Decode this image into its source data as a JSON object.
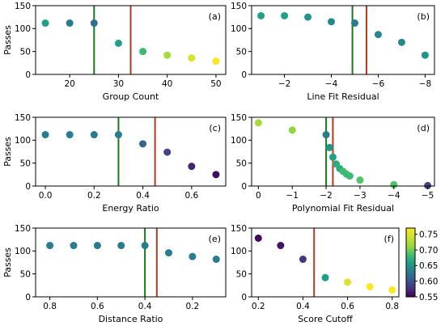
{
  "colorbar": {
    "min": 0.55,
    "max": 0.77,
    "ticks": [
      0.55,
      0.6,
      0.65,
      0.7,
      0.75
    ],
    "tick_labels": [
      "0.55",
      "0.60",
      "0.65",
      "0.70",
      "0.75"
    ],
    "colormap": "viridis"
  },
  "chart_data": [
    {
      "id": "a",
      "panel_label": "(a)",
      "type": "scatter",
      "xlabel": "Group Count",
      "ylabel": "Passes",
      "xlim": [
        13,
        52
      ],
      "ylim": [
        0,
        150
      ],
      "x_inverted": false,
      "xticks": [
        20,
        30,
        40,
        50
      ],
      "xtick_labels": [
        "20",
        "30",
        "40",
        "50"
      ],
      "yticks": [
        0,
        50,
        100,
        150
      ],
      "ytick_labels": [
        "0",
        "50",
        "100",
        "150"
      ],
      "points": [
        {
          "x": 15,
          "y": 112,
          "c": 0.66
        },
        {
          "x": 20,
          "y": 112,
          "c": 0.63
        },
        {
          "x": 25,
          "y": 112,
          "c": 0.62
        },
        {
          "x": 30,
          "y": 68,
          "c": 0.66
        },
        {
          "x": 35,
          "y": 50,
          "c": 0.68
        },
        {
          "x": 40,
          "y": 42,
          "c": 0.72
        },
        {
          "x": 45,
          "y": 36,
          "c": 0.75
        },
        {
          "x": 50,
          "y": 29,
          "c": 0.77
        }
      ],
      "green_line_x": 25,
      "red_line_x": 32.5
    },
    {
      "id": "b",
      "panel_label": "(b)",
      "type": "scatter",
      "xlabel": "Line Fit Residual",
      "ylabel": "",
      "xlim": [
        -0.6,
        -8.4
      ],
      "ylim": [
        0,
        150
      ],
      "x_inverted": true,
      "xticks": [
        -2,
        -4,
        -6,
        -8
      ],
      "xtick_labels": [
        "−2",
        "−4",
        "−6",
        "−8"
      ],
      "yticks": [
        0,
        50,
        100,
        150
      ],
      "ytick_labels": [
        "0",
        "50",
        "100",
        "150"
      ],
      "points": [
        {
          "x": -1,
          "y": 128,
          "c": 0.66
        },
        {
          "x": -2,
          "y": 128,
          "c": 0.66
        },
        {
          "x": -3,
          "y": 125,
          "c": 0.65
        },
        {
          "x": -4,
          "y": 115,
          "c": 0.64
        },
        {
          "x": -5,
          "y": 112,
          "c": 0.63
        },
        {
          "x": -6,
          "y": 87,
          "c": 0.64
        },
        {
          "x": -7,
          "y": 70,
          "c": 0.64
        },
        {
          "x": -8,
          "y": 42,
          "c": 0.65
        }
      ],
      "green_line_x": -4.9,
      "red_line_x": -5.5
    },
    {
      "id": "c",
      "panel_label": "(c)",
      "type": "scatter",
      "xlabel": "Energy Ratio",
      "ylabel": "Passes",
      "xlim": [
        -0.04,
        0.74
      ],
      "ylim": [
        0,
        150
      ],
      "x_inverted": false,
      "xticks": [
        0.0,
        0.2,
        0.4,
        0.6
      ],
      "xtick_labels": [
        "0.0",
        "0.2",
        "0.4",
        "0.6"
      ],
      "yticks": [
        0,
        50,
        100,
        150
      ],
      "ytick_labels": [
        "0",
        "50",
        "100",
        "150"
      ],
      "points": [
        {
          "x": 0.0,
          "y": 112,
          "c": 0.63
        },
        {
          "x": 0.1,
          "y": 112,
          "c": 0.63
        },
        {
          "x": 0.2,
          "y": 112,
          "c": 0.63
        },
        {
          "x": 0.3,
          "y": 112,
          "c": 0.63
        },
        {
          "x": 0.4,
          "y": 92,
          "c": 0.61
        },
        {
          "x": 0.5,
          "y": 74,
          "c": 0.59
        },
        {
          "x": 0.6,
          "y": 43,
          "c": 0.57
        },
        {
          "x": 0.7,
          "y": 25,
          "c": 0.555
        }
      ],
      "green_line_x": 0.3,
      "red_line_x": 0.45
    },
    {
      "id": "d",
      "panel_label": "(d)",
      "type": "scatter",
      "xlabel": "Polynomial Fit Residual",
      "ylabel": "",
      "xlim": [
        0.2,
        -5.2
      ],
      "ylim": [
        0,
        150
      ],
      "x_inverted": true,
      "xticks": [
        0,
        -1,
        -2,
        -3,
        -4,
        -5
      ],
      "xtick_labels": [
        "0",
        "−1",
        "−2",
        "−3",
        "−4",
        "−5"
      ],
      "yticks": [
        0,
        50,
        100,
        150
      ],
      "ytick_labels": [
        "0",
        "50",
        "100",
        "150"
      ],
      "points": [
        {
          "x": 0,
          "y": 138,
          "c": 0.72
        },
        {
          "x": -1,
          "y": 122,
          "c": 0.71
        },
        {
          "x": -2,
          "y": 112,
          "c": 0.63
        },
        {
          "x": -2.1,
          "y": 84,
          "c": 0.65
        },
        {
          "x": -2.2,
          "y": 63,
          "c": 0.66
        },
        {
          "x": -2.3,
          "y": 48,
          "c": 0.67
        },
        {
          "x": -2.4,
          "y": 38,
          "c": 0.67
        },
        {
          "x": -2.5,
          "y": 32,
          "c": 0.68
        },
        {
          "x": -2.6,
          "y": 26,
          "c": 0.68
        },
        {
          "x": -2.7,
          "y": 22,
          "c": 0.68
        },
        {
          "x": -3,
          "y": 13,
          "c": 0.69
        },
        {
          "x": -4,
          "y": 3,
          "c": 0.69
        },
        {
          "x": -5,
          "y": 1,
          "c": 0.59
        }
      ],
      "green_line_x": -2.0,
      "red_line_x": -2.2
    },
    {
      "id": "e",
      "panel_label": "(e)",
      "type": "scatter",
      "xlabel": "Distance Ratio",
      "ylabel": "Passes",
      "xlim": [
        0.86,
        0.06
      ],
      "ylim": [
        0,
        150
      ],
      "x_inverted": true,
      "xticks": [
        0.8,
        0.6,
        0.4,
        0.2
      ],
      "xtick_labels": [
        "0.8",
        "0.6",
        "0.4",
        "0.2"
      ],
      "yticks": [
        0,
        50,
        100,
        150
      ],
      "ytick_labels": [
        "0",
        "50",
        "100",
        "150"
      ],
      "points": [
        {
          "x": 0.8,
          "y": 112,
          "c": 0.63
        },
        {
          "x": 0.7,
          "y": 112,
          "c": 0.63
        },
        {
          "x": 0.6,
          "y": 112,
          "c": 0.63
        },
        {
          "x": 0.5,
          "y": 112,
          "c": 0.63
        },
        {
          "x": 0.4,
          "y": 112,
          "c": 0.63
        },
        {
          "x": 0.3,
          "y": 96,
          "c": 0.63
        },
        {
          "x": 0.2,
          "y": 88,
          "c": 0.63
        },
        {
          "x": 0.1,
          "y": 82,
          "c": 0.63
        }
      ],
      "green_line_x": 0.4,
      "red_line_x": 0.35
    },
    {
      "id": "f",
      "panel_label": "(f)",
      "type": "scatter",
      "xlabel": "Score Cutoff",
      "ylabel": "",
      "xlim": [
        0.17,
        0.83
      ],
      "ylim": [
        0,
        150
      ],
      "x_inverted": false,
      "xticks": [
        0.2,
        0.4,
        0.6,
        0.8
      ],
      "xtick_labels": [
        "0.2",
        "0.4",
        "0.6",
        "0.8"
      ],
      "yticks": [
        0,
        50,
        100,
        150
      ],
      "ytick_labels": [
        "0",
        "50",
        "100",
        "150"
      ],
      "points": [
        {
          "x": 0.2,
          "y": 128,
          "c": 0.555
        },
        {
          "x": 0.3,
          "y": 112,
          "c": 0.56
        },
        {
          "x": 0.4,
          "y": 82,
          "c": 0.58
        },
        {
          "x": 0.5,
          "y": 42,
          "c": 0.66
        },
        {
          "x": 0.6,
          "y": 32,
          "c": 0.75
        },
        {
          "x": 0.7,
          "y": 22,
          "c": 0.77
        },
        {
          "x": 0.8,
          "y": 15,
          "c": 0.77
        }
      ],
      "green_line_x": null,
      "red_line_x": 0.45
    }
  ]
}
